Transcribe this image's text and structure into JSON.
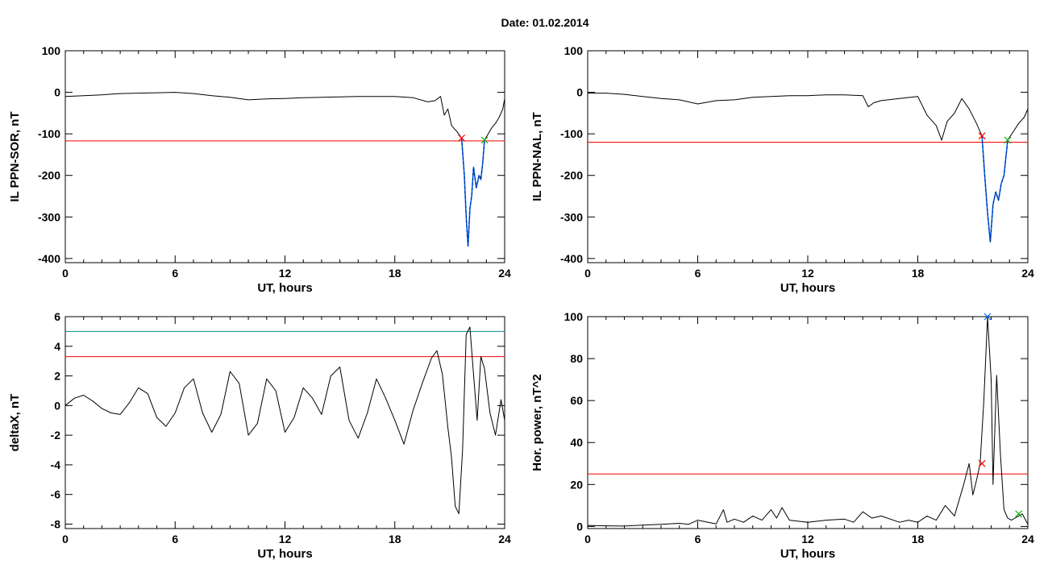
{
  "title": "Date:  01.02.2014",
  "colors": {
    "red": "#ff0000",
    "blue": "#0060ff",
    "teal": "#008b8b",
    "green": "#00b000",
    "black": "#000000"
  },
  "chart_data": [
    {
      "id": "sor",
      "type": "line",
      "xlabel": "UT, hours",
      "ylabel": "IL PPN-SOR, nT",
      "xlim": [
        0,
        24
      ],
      "ylim": [
        -410,
        100
      ],
      "xticks": [
        0,
        6,
        12,
        18,
        24
      ],
      "yticks": [
        100,
        0,
        -100,
        -200,
        -300,
        -400
      ],
      "threshold": -117,
      "black_segments": [
        {
          "x": [
            0,
            1,
            2,
            3,
            4,
            5,
            6,
            7,
            8,
            9,
            10,
            11,
            12,
            13,
            14,
            15,
            16,
            17,
            18,
            19,
            19.8,
            20.2,
            20.5,
            20.7,
            20.9,
            21.1,
            21.4,
            21.65
          ],
          "y": [
            -10,
            -8,
            -6,
            -3,
            -2,
            -1,
            0,
            -3,
            -8,
            -12,
            -18,
            -16,
            -15,
            -13,
            -12,
            -11,
            -10,
            -10,
            -10,
            -13,
            -23,
            -20,
            -10,
            -55,
            -40,
            -80,
            -95,
            -110
          ]
        },
        {
          "x": [
            22.9,
            23.1,
            23.3,
            23.5,
            23.7,
            23.9,
            24.0
          ],
          "y": [
            -115,
            -100,
            -85,
            -75,
            -60,
            -40,
            -15
          ]
        }
      ],
      "blue_segment": {
        "x": [
          21.65,
          21.8,
          21.9,
          22.0,
          22.1,
          22.2,
          22.3,
          22.45,
          22.6,
          22.7,
          22.8,
          22.9
        ],
        "y": [
          -110,
          -200,
          -300,
          -370,
          -280,
          -250,
          -180,
          -230,
          -200,
          -210,
          -170,
          -115
        ]
      },
      "markers": [
        {
          "x": 21.65,
          "y": -110,
          "color": "red"
        },
        {
          "x": 22.9,
          "y": -115,
          "color": "green"
        }
      ]
    },
    {
      "id": "nal",
      "type": "line",
      "xlabel": "UT, hours",
      "ylabel": "IL PPN-NAL, nT",
      "xlim": [
        0,
        24
      ],
      "ylim": [
        -410,
        100
      ],
      "xticks": [
        0,
        6,
        12,
        18,
        24
      ],
      "yticks": [
        100,
        0,
        -100,
        -200,
        -300,
        -400
      ],
      "threshold": -120,
      "black_segments": [
        {
          "x": [
            0,
            1,
            2,
            3,
            4,
            5,
            6,
            7,
            8,
            9,
            10,
            11,
            12,
            13,
            14,
            15,
            15.3,
            15.6,
            16,
            17,
            18,
            18.5,
            19,
            19.3,
            19.6,
            20,
            20.4,
            20.8,
            21.2,
            21.5
          ],
          "y": [
            -2,
            -2,
            -5,
            -10,
            -15,
            -18,
            -28,
            -20,
            -18,
            -12,
            -10,
            -8,
            -8,
            -6,
            -6,
            -8,
            -35,
            -25,
            -20,
            -15,
            -10,
            -55,
            -80,
            -115,
            -70,
            -50,
            -15,
            -40,
            -75,
            -105
          ]
        },
        {
          "x": [
            22.9,
            23.2,
            23.5,
            23.8,
            24.0
          ],
          "y": [
            -115,
            -95,
            -75,
            -60,
            -40
          ]
        }
      ],
      "blue_segment": {
        "x": [
          21.5,
          21.65,
          21.8,
          21.95,
          22.1,
          22.25,
          22.4,
          22.55,
          22.7,
          22.9
        ],
        "y": [
          -105,
          -200,
          -290,
          -360,
          -270,
          -240,
          -260,
          -220,
          -200,
          -115
        ]
      },
      "markers": [
        {
          "x": 21.5,
          "y": -105,
          "color": "red"
        },
        {
          "x": 22.9,
          "y": -115,
          "color": "green"
        }
      ]
    },
    {
      "id": "deltax",
      "type": "line",
      "xlabel": "UT, hours",
      "ylabel": "deltaX, nT",
      "xlim": [
        0,
        24
      ],
      "ylim": [
        -8.3,
        6
      ],
      "xticks": [
        0,
        6,
        12,
        18,
        24
      ],
      "yticks": [
        6,
        4,
        2,
        0,
        -2,
        -4,
        -6,
        -8
      ],
      "hlines": [
        {
          "y": 5.0,
          "color": "teal"
        },
        {
          "y": 3.3,
          "color": "red"
        }
      ],
      "black_segments": [
        {
          "x": [
            0,
            0.5,
            1.0,
            1.5,
            2.0,
            2.5,
            3.0,
            3.5,
            4.0,
            4.5,
            5.0,
            5.5,
            6.0,
            6.5,
            7.0,
            7.5,
            8.0,
            8.5,
            9.0,
            9.5,
            10.0,
            10.5,
            11.0,
            11.5,
            12.0,
            12.5,
            13.0,
            13.5,
            14.0,
            14.5,
            15.0,
            15.5,
            16.0,
            16.5,
            17.0,
            17.5,
            18.0,
            18.5,
            19.0,
            19.5,
            20.0,
            20.3,
            20.6,
            20.9,
            21.1,
            21.3,
            21.5,
            21.7,
            21.9,
            22.1,
            22.3,
            22.5,
            22.7,
            22.9,
            23.2,
            23.5,
            23.8,
            24.0
          ],
          "y": [
            0.0,
            0.5,
            0.7,
            0.3,
            -0.2,
            -0.5,
            -0.6,
            0.2,
            1.2,
            0.8,
            -0.8,
            -1.4,
            -0.5,
            1.2,
            1.8,
            -0.5,
            -1.8,
            -0.6,
            2.3,
            1.5,
            -2.0,
            -1.2,
            1.8,
            1.0,
            -1.8,
            -0.8,
            1.2,
            0.5,
            -0.6,
            2.0,
            2.6,
            -1.0,
            -2.2,
            -0.5,
            1.8,
            0.5,
            -1.0,
            -2.6,
            -0.3,
            1.5,
            3.2,
            3.7,
            2.1,
            -1.5,
            -3.5,
            -6.8,
            -7.3,
            -3.0,
            4.8,
            5.3,
            2.1,
            -1.0,
            3.3,
            2.5,
            -0.5,
            -2.0,
            0.4,
            -1.0
          ]
        }
      ]
    },
    {
      "id": "power",
      "type": "line",
      "xlabel": "UT, hours",
      "ylabel": "Hor. power, nT^2",
      "xlim": [
        0,
        24
      ],
      "ylim": [
        -1,
        100
      ],
      "xticks": [
        0,
        6,
        12,
        18,
        24
      ],
      "yticks": [
        0,
        20,
        40,
        60,
        80,
        100
      ],
      "hlines": [
        {
          "y": 25,
          "color": "red"
        }
      ],
      "black_segments": [
        {
          "x": [
            0,
            1,
            2,
            3,
            4,
            5,
            5.5,
            6,
            7,
            7.4,
            7.6,
            8,
            8.5,
            9,
            9.5,
            10,
            10.3,
            10.6,
            11,
            12,
            13,
            14,
            14.5,
            15,
            15.5,
            16,
            17,
            17.5,
            18,
            18.5,
            19,
            19.5,
            20,
            20.5,
            20.8,
            21.0,
            21.2,
            21.4,
            21.6,
            21.8,
            22.0,
            22.1,
            22.3,
            22.5,
            22.7,
            22.9,
            23.1,
            23.3,
            23.5,
            23.7,
            24.0
          ],
          "y": [
            0.5,
            0.3,
            0.2,
            0.6,
            1.0,
            1.5,
            1.0,
            3.0,
            1.2,
            8.0,
            2.0,
            3.5,
            2.0,
            5.0,
            3.0,
            8.0,
            4.0,
            9.0,
            3.0,
            2.0,
            3.0,
            3.5,
            2.0,
            7.0,
            4.0,
            5.0,
            2.0,
            3.0,
            2.0,
            5.0,
            3.0,
            10.0,
            5.0,
            20.0,
            30.0,
            15.0,
            22.0,
            30.0,
            60.0,
            100.0,
            70.0,
            20.0,
            72.0,
            35.0,
            8.0,
            4.0,
            3.0,
            4.0,
            5.0,
            6.0,
            1.0
          ]
        }
      ],
      "markers": [
        {
          "x": 21.5,
          "y": 30,
          "color": "red"
        },
        {
          "x": 21.8,
          "y": 100,
          "color": "blue"
        },
        {
          "x": 23.5,
          "y": 6,
          "color": "green"
        }
      ]
    }
  ]
}
